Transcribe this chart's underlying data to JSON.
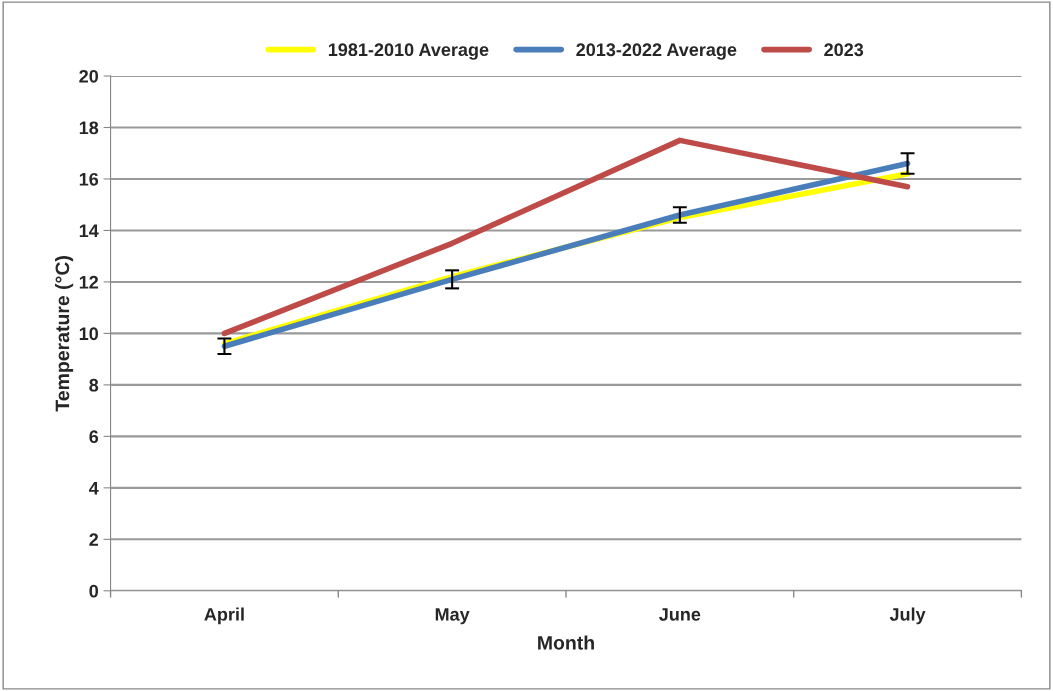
{
  "chart_data": {
    "type": "line",
    "xlabel": "Month",
    "ylabel": "Temperature (°C)",
    "categories": [
      "April",
      "May",
      "June",
      "July"
    ],
    "series": [
      {
        "name": "1981-2010 Average",
        "color": "#ffff00",
        "values": [
          9.6,
          12.2,
          14.5,
          16.2
        ]
      },
      {
        "name": "2013-2022 Average",
        "color": "#4a7ebb",
        "values": [
          9.5,
          12.1,
          14.6,
          16.6
        ],
        "errors": [
          0.3,
          0.35,
          0.3,
          0.4
        ]
      },
      {
        "name": "2023",
        "color": "#be4b48",
        "values": [
          10.0,
          13.5,
          17.5,
          15.7
        ]
      }
    ],
    "ylim": [
      0,
      20
    ],
    "yticks": [
      0,
      2,
      4,
      6,
      8,
      10,
      12,
      14,
      16,
      18,
      20
    ],
    "grid": "y",
    "legend": "top",
    "marker": "none"
  }
}
